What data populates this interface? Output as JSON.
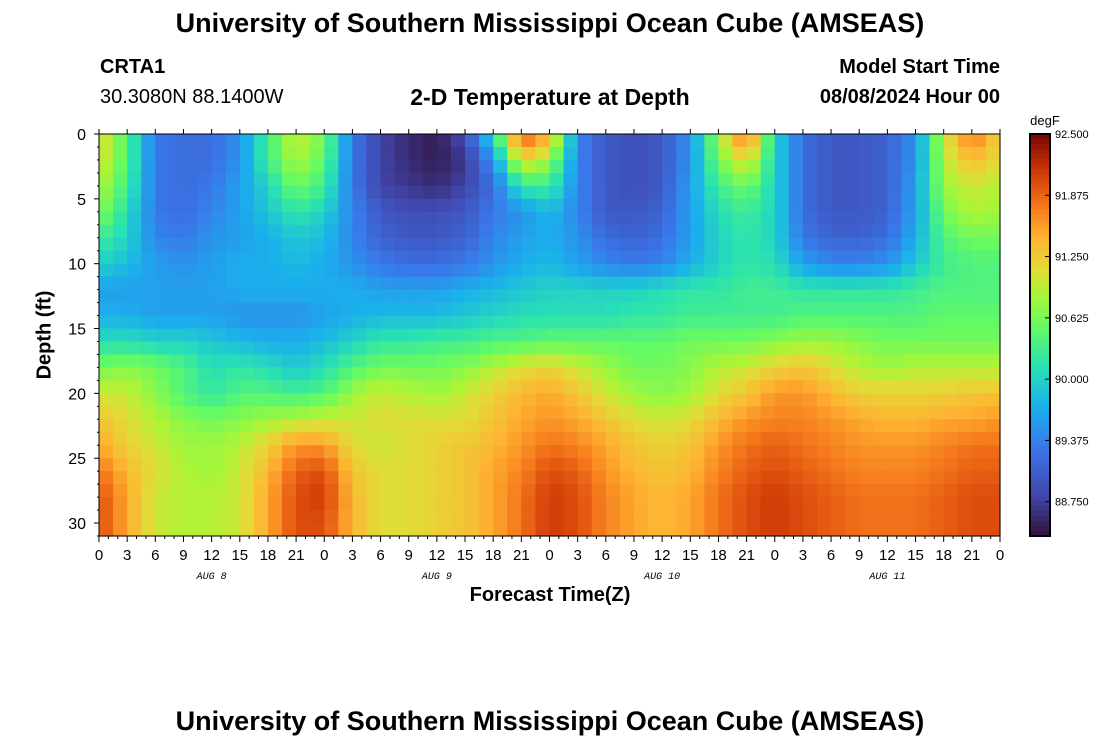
{
  "header": {
    "title": "University of Southern Mississippi Ocean Cube (AMSEAS)",
    "station_id": "CRTA1",
    "station_coords": "30.3080N  88.1400W",
    "subtitle": "2-D Temperature at Depth",
    "model_start_label": "Model Start Time",
    "model_start_value": "08/08/2024 Hour 00"
  },
  "footer": {
    "title": "University of Southern Mississippi Ocean Cube (AMSEAS)"
  },
  "chart_data": {
    "type": "heatmap",
    "xlabel": "Forecast Time(Z)",
    "ylabel": "Depth (ft)",
    "colorbar_unit": "degF",
    "colorbar_ticks": [
      "92.500",
      "91.875",
      "91.250",
      "90.625",
      "90.000",
      "89.375",
      "88.750"
    ],
    "color_range": [
      88.4,
      92.5
    ],
    "depth_range": [
      0,
      31
    ],
    "depth_ticks": [
      0,
      5,
      10,
      15,
      20,
      25,
      30
    ],
    "time_range_hours": [
      0,
      96
    ],
    "x_tick_labels": [
      "0",
      "3",
      "6",
      "9",
      "12",
      "15",
      "18",
      "21",
      "0",
      "3",
      "6",
      "9",
      "12",
      "15",
      "18",
      "21",
      "0",
      "3",
      "6",
      "9",
      "12",
      "15",
      "18",
      "21",
      "0",
      "3",
      "6",
      "9",
      "12",
      "15",
      "18",
      "21",
      "0"
    ],
    "day_labels": [
      "AUG 8",
      "AUG 9",
      "AUG 10",
      "AUG 11"
    ],
    "depths": [
      0,
      2,
      4,
      6,
      8,
      10,
      12,
      14,
      16,
      18,
      20,
      22,
      24,
      26,
      28,
      30
    ],
    "times": [
      0,
      3,
      6,
      9,
      12,
      15,
      18,
      21,
      24,
      27,
      30,
      33,
      36,
      39,
      42,
      45,
      48,
      51,
      54,
      57,
      60,
      63,
      66,
      69,
      72,
      75,
      78,
      81,
      84,
      87,
      90,
      93,
      96
    ],
    "temperature": [
      [
        91.2,
        90.4,
        89.3,
        89.2,
        89.2,
        89.5,
        90.3,
        91.0,
        90.6,
        89.3,
        88.8,
        88.6,
        88.5,
        88.9,
        90.1,
        92.0,
        91.5,
        89.4,
        89.0,
        88.9,
        89.0,
        89.5,
        90.8,
        91.9,
        90.0,
        89.2,
        89.0,
        89.0,
        89.1,
        89.5,
        91.0,
        91.8,
        91.2
      ],
      [
        91.1,
        90.4,
        89.3,
        89.2,
        89.2,
        89.5,
        90.3,
        90.9,
        90.5,
        89.3,
        88.8,
        88.6,
        88.5,
        88.7,
        89.5,
        91.2,
        90.8,
        89.4,
        89.0,
        88.9,
        89.0,
        89.5,
        90.6,
        91.2,
        90.0,
        89.2,
        89.0,
        89.0,
        89.1,
        89.5,
        90.9,
        91.4,
        91.1
      ],
      [
        90.9,
        90.3,
        89.3,
        89.2,
        89.3,
        89.6,
        90.0,
        90.6,
        90.3,
        89.3,
        88.8,
        88.7,
        88.6,
        88.8,
        89.2,
        90.2,
        90.3,
        89.4,
        89.0,
        88.9,
        89.0,
        89.6,
        90.3,
        90.6,
        90.0,
        89.2,
        89.0,
        89.0,
        89.1,
        89.6,
        90.8,
        91.0,
        90.9
      ],
      [
        90.7,
        90.1,
        89.3,
        89.2,
        89.4,
        89.6,
        89.9,
        90.2,
        90.0,
        89.4,
        89.0,
        88.9,
        88.9,
        89.0,
        89.3,
        89.5,
        89.8,
        89.4,
        89.0,
        89.0,
        89.1,
        89.6,
        90.1,
        90.3,
        90.0,
        89.2,
        89.0,
        89.0,
        89.1,
        89.6,
        90.6,
        90.9,
        90.8
      ],
      [
        90.3,
        90.0,
        89.4,
        89.3,
        89.5,
        89.6,
        89.7,
        89.9,
        89.8,
        89.4,
        89.1,
        89.0,
        89.0,
        89.1,
        89.4,
        89.6,
        89.7,
        89.5,
        89.2,
        89.1,
        89.2,
        89.6,
        90.0,
        90.2,
        90.0,
        89.3,
        89.1,
        89.1,
        89.2,
        89.7,
        90.4,
        90.6,
        90.6
      ],
      [
        90.0,
        89.8,
        89.6,
        89.5,
        89.6,
        89.7,
        89.7,
        89.8,
        89.7,
        89.5,
        89.3,
        89.2,
        89.2,
        89.3,
        89.5,
        89.7,
        89.8,
        89.6,
        89.4,
        89.3,
        89.4,
        89.7,
        90.0,
        90.2,
        90.1,
        89.6,
        89.4,
        89.4,
        89.5,
        89.9,
        90.3,
        90.4,
        90.4
      ],
      [
        89.6,
        89.6,
        89.6,
        89.6,
        89.6,
        89.7,
        89.7,
        89.7,
        89.7,
        89.7,
        89.6,
        89.6,
        89.6,
        89.7,
        89.8,
        89.9,
        90.0,
        90.0,
        90.0,
        90.0,
        90.1,
        90.2,
        90.2,
        90.3,
        90.3,
        90.2,
        90.2,
        90.2,
        90.2,
        90.3,
        90.4,
        90.4,
        90.4
      ],
      [
        89.7,
        89.7,
        89.6,
        89.6,
        89.6,
        89.5,
        89.5,
        89.5,
        89.6,
        89.7,
        89.8,
        89.8,
        89.8,
        89.9,
        90.0,
        90.1,
        90.1,
        90.1,
        90.1,
        90.2,
        90.2,
        90.3,
        90.3,
        90.3,
        90.3,
        90.4,
        90.4,
        90.4,
        90.4,
        90.4,
        90.5,
        90.5,
        90.5
      ],
      [
        90.1,
        90.1,
        90.0,
        90.0,
        89.9,
        89.8,
        89.7,
        89.7,
        89.8,
        90.0,
        90.2,
        90.2,
        90.3,
        90.3,
        90.4,
        90.4,
        90.5,
        90.5,
        90.5,
        90.5,
        90.5,
        90.6,
        90.6,
        90.6,
        90.7,
        90.8,
        90.8,
        90.7,
        90.6,
        90.6,
        90.6,
        90.6,
        90.6
      ],
      [
        90.6,
        90.7,
        90.6,
        90.4,
        90.1,
        90.2,
        90.1,
        89.9,
        90.1,
        90.4,
        90.6,
        90.6,
        90.6,
        90.7,
        90.9,
        91.1,
        91.2,
        91.0,
        90.8,
        90.6,
        90.6,
        90.7,
        90.9,
        91.0,
        91.2,
        91.3,
        91.1,
        90.9,
        90.8,
        90.9,
        90.9,
        90.9,
        90.9
      ],
      [
        91.0,
        91.0,
        90.7,
        90.4,
        90.2,
        90.4,
        90.4,
        90.3,
        90.4,
        90.8,
        91.0,
        90.9,
        90.8,
        91.0,
        91.2,
        91.4,
        91.5,
        91.3,
        91.0,
        90.8,
        90.7,
        90.8,
        91.1,
        91.3,
        91.6,
        91.6,
        91.4,
        91.2,
        91.2,
        91.2,
        91.2,
        91.3,
        91.3
      ],
      [
        91.3,
        91.1,
        90.9,
        90.7,
        90.6,
        90.7,
        90.8,
        90.9,
        91.0,
        91.0,
        91.1,
        91.1,
        91.1,
        91.1,
        91.3,
        91.5,
        91.6,
        91.5,
        91.3,
        91.1,
        91.0,
        91.1,
        91.4,
        91.6,
        91.7,
        91.7,
        91.6,
        91.5,
        91.4,
        91.4,
        91.5,
        91.5,
        91.6
      ],
      [
        91.5,
        91.2,
        91.0,
        90.8,
        90.8,
        90.9,
        91.2,
        91.6,
        91.6,
        91.1,
        91.0,
        91.1,
        91.2,
        91.3,
        91.4,
        91.6,
        91.8,
        91.7,
        91.5,
        91.3,
        91.2,
        91.3,
        91.6,
        91.8,
        91.9,
        91.8,
        91.7,
        91.6,
        91.6,
        91.6,
        91.7,
        91.8,
        91.8
      ],
      [
        91.8,
        91.4,
        91.1,
        90.9,
        90.8,
        91.0,
        91.4,
        91.9,
        92.0,
        91.3,
        91.1,
        91.1,
        91.2,
        91.3,
        91.5,
        91.7,
        92.0,
        91.9,
        91.6,
        91.4,
        91.3,
        91.4,
        91.7,
        91.9,
        92.0,
        91.9,
        91.8,
        91.7,
        91.7,
        91.7,
        91.8,
        91.9,
        91.9
      ],
      [
        92.0,
        91.5,
        91.0,
        90.9,
        90.9,
        91.0,
        91.5,
        92.0,
        92.1,
        91.4,
        91.1,
        91.1,
        91.2,
        91.3,
        91.5,
        91.8,
        92.1,
        92.0,
        91.7,
        91.5,
        91.4,
        91.5,
        91.8,
        92.0,
        92.1,
        92.0,
        91.9,
        91.8,
        91.8,
        91.8,
        91.9,
        92.0,
        92.0
      ],
      [
        92.0,
        91.5,
        91.0,
        90.9,
        90.9,
        91.0,
        91.5,
        92.0,
        92.0,
        91.4,
        91.1,
        91.1,
        91.2,
        91.3,
        91.5,
        91.8,
        92.1,
        92.0,
        91.7,
        91.5,
        91.4,
        91.5,
        91.8,
        92.0,
        92.1,
        92.0,
        91.9,
        91.8,
        91.8,
        91.8,
        91.9,
        92.0,
        92.0
      ]
    ]
  }
}
